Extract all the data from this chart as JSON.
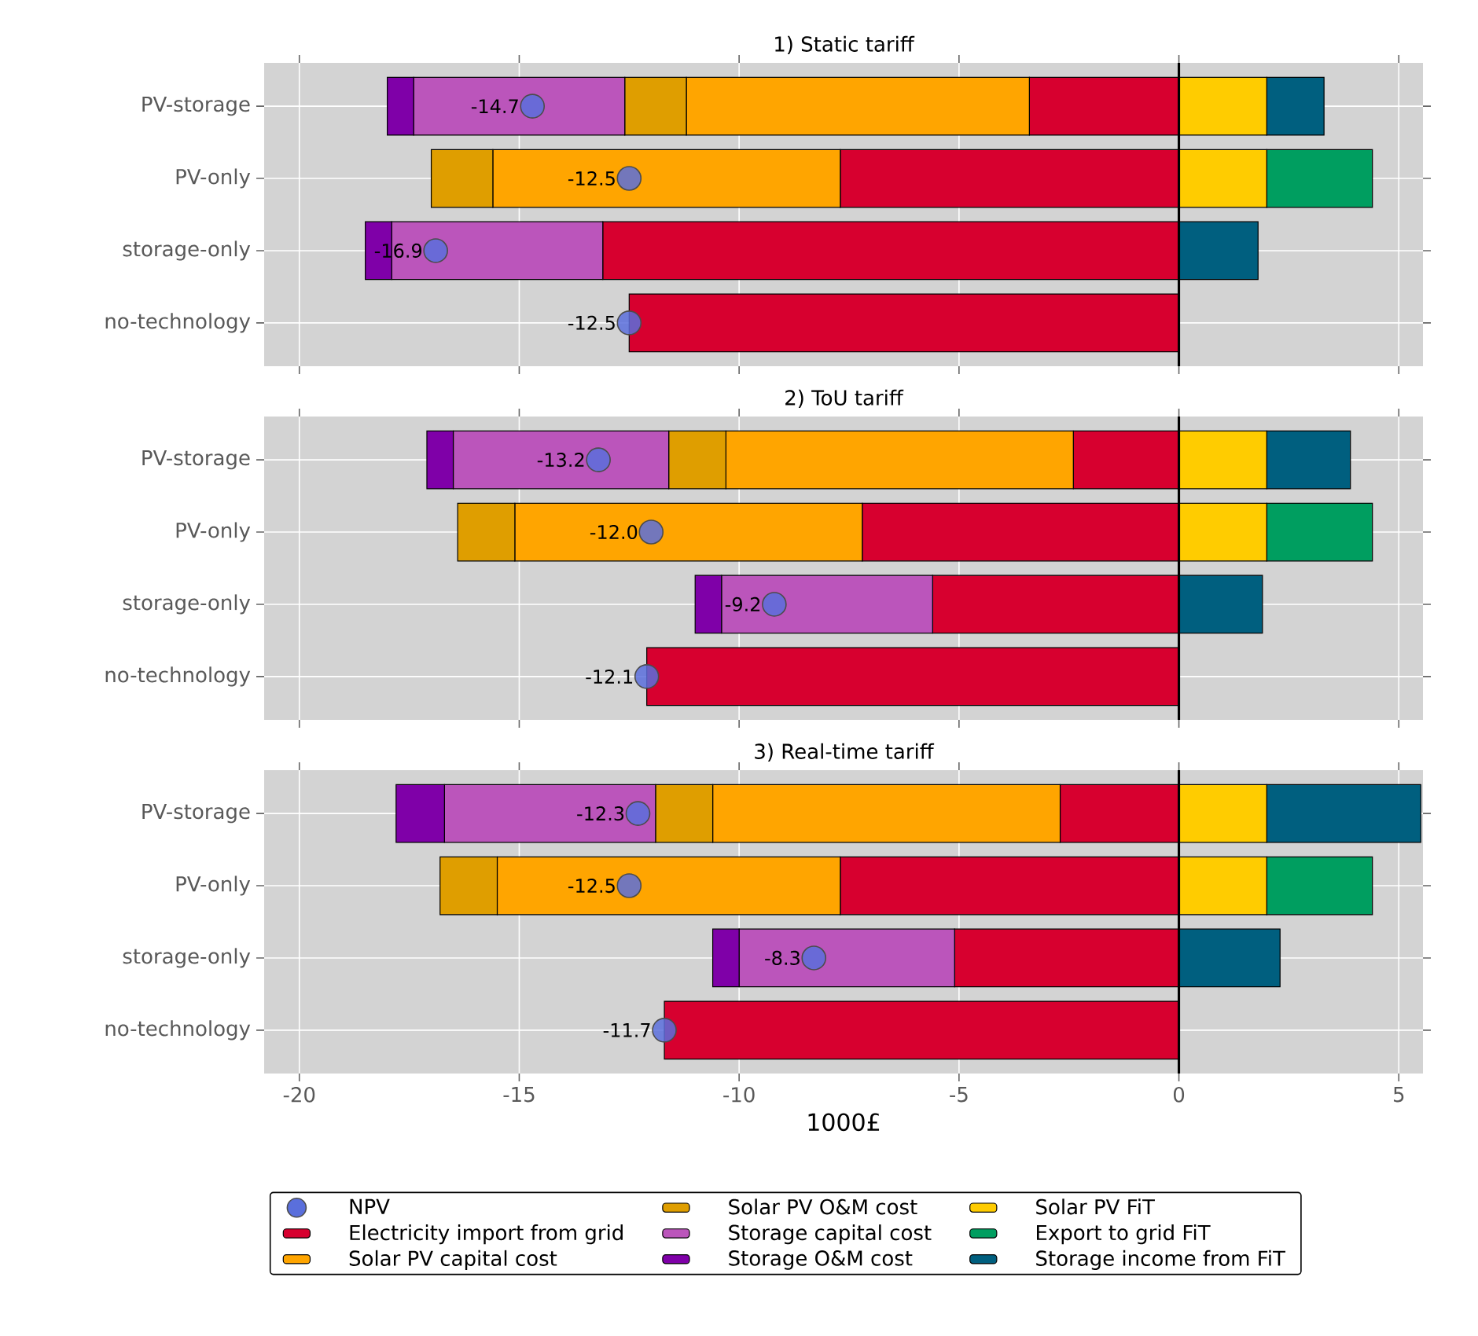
{
  "chart_data": [
    {
      "type": "bar",
      "orientation": "horizontal",
      "stacked": true,
      "title": "1) Static tariff",
      "marker": "circle",
      "categories": [
        "PV-storage",
        "PV-only",
        "storage-only",
        "no-technology"
      ],
      "xlim": [
        -20.8,
        5.55
      ],
      "xticks": [
        -20,
        -15,
        -10,
        -5,
        0,
        5
      ],
      "grid": true,
      "tick_labels": "y",
      "ref_lines": [
        {
          "axis": "x",
          "value": 0,
          "color": "#000000"
        }
      ],
      "series": [
        {
          "type": "scatter",
          "color": "#5a6fdc",
          "values": [
            -14.7,
            -12.5,
            -16.9,
            -12.5
          ],
          "value_labels": [
            "-14.7",
            "-12.5",
            "-16.9",
            "-12.5"
          ]
        },
        {
          "color": "#d7002f",
          "values": [
            -3.4,
            -7.7,
            -13.1,
            -12.5
          ]
        },
        {
          "color": "#ffa500",
          "values": [
            -7.8,
            -7.9,
            null,
            null
          ]
        },
        {
          "color": "#df9e00",
          "values": [
            -1.4,
            -1.4,
            null,
            null
          ]
        },
        {
          "color": "#bb55bb",
          "values": [
            -4.8,
            null,
            -4.8,
            null
          ]
        },
        {
          "color": "#7f00a8",
          "values": [
            -0.6,
            null,
            -0.6,
            null
          ]
        },
        {
          "color": "#ffcc00",
          "values": [
            2.0,
            2.0,
            null,
            null
          ]
        },
        {
          "color": "#009e60",
          "values": [
            null,
            2.4,
            null,
            null
          ]
        },
        {
          "color": "#005f7f",
          "values": [
            1.3,
            null,
            1.8,
            null
          ]
        }
      ]
    },
    {
      "type": "bar",
      "orientation": "horizontal",
      "stacked": true,
      "title": "2) ToU tariff",
      "marker": "circle",
      "categories": [
        "PV-storage",
        "PV-only",
        "storage-only",
        "no-technology"
      ],
      "xlim": [
        -20.8,
        5.55
      ],
      "xticks": [
        -20,
        -15,
        -10,
        -5,
        0,
        5
      ],
      "grid": true,
      "tick_labels": "y",
      "ref_lines": [
        {
          "axis": "x",
          "value": 0,
          "color": "#000000"
        }
      ],
      "series": [
        {
          "type": "scatter",
          "color": "#5a6fdc",
          "values": [
            -13.2,
            -12.0,
            -9.2,
            -12.1
          ],
          "value_labels": [
            "-13.2",
            "-12.0",
            "-9.2",
            "-12.1"
          ]
        },
        {
          "color": "#d7002f",
          "values": [
            -2.4,
            -7.2,
            -5.6,
            -12.1
          ]
        },
        {
          "color": "#ffa500",
          "values": [
            -7.9,
            -7.9,
            null,
            null
          ]
        },
        {
          "color": "#df9e00",
          "values": [
            -1.3,
            -1.3,
            null,
            null
          ]
        },
        {
          "color": "#bb55bb",
          "values": [
            -4.9,
            null,
            -4.8,
            null
          ]
        },
        {
          "color": "#7f00a8",
          "values": [
            -0.6,
            null,
            -0.6,
            null
          ]
        },
        {
          "color": "#ffcc00",
          "values": [
            2.0,
            2.0,
            null,
            null
          ]
        },
        {
          "color": "#009e60",
          "values": [
            null,
            2.4,
            null,
            null
          ]
        },
        {
          "color": "#005f7f",
          "values": [
            1.9,
            null,
            1.9,
            null
          ]
        }
      ]
    },
    {
      "type": "bar",
      "orientation": "horizontal",
      "stacked": true,
      "title": "3) Real-time tariff",
      "marker": "circle",
      "xlabel": "1000£",
      "categories": [
        "PV-storage",
        "PV-only",
        "storage-only",
        "no-technology"
      ],
      "xlim": [
        -20.8,
        5.55
      ],
      "xticks": [
        -20,
        -15,
        -10,
        -5,
        0,
        5
      ],
      "grid": true,
      "legend": "bottom",
      "ref_lines": [
        {
          "axis": "x",
          "value": 0,
          "color": "#000000"
        }
      ],
      "series": [
        {
          "name": "NPV",
          "type": "scatter",
          "color": "#5a6fdc",
          "values": [
            -12.3,
            -12.5,
            -8.3,
            -11.7
          ],
          "value_labels": [
            "-12.3",
            "-12.5",
            "-8.3",
            "-11.7"
          ]
        },
        {
          "name": "Electricity import from grid",
          "color": "#d7002f",
          "values": [
            -2.7,
            -7.7,
            -5.1,
            -11.7
          ]
        },
        {
          "name": "Solar PV capital cost",
          "color": "#ffa500",
          "values": [
            -7.9,
            -7.8,
            null,
            null
          ]
        },
        {
          "name": "Solar PV O&M cost",
          "color": "#df9e00",
          "values": [
            -1.3,
            -1.3,
            null,
            null
          ]
        },
        {
          "name": "Storage capital cost",
          "color": "#bb55bb",
          "values": [
            -4.8,
            null,
            -4.9,
            null
          ]
        },
        {
          "name": "Storage O&M cost",
          "color": "#7f00a8",
          "values": [
            -1.1,
            null,
            -0.6,
            null
          ]
        },
        {
          "name": "Solar PV FiT",
          "color": "#ffcc00",
          "values": [
            2.0,
            2.0,
            null,
            null
          ]
        },
        {
          "name": "Export to grid FiT",
          "color": "#009e60",
          "values": [
            null,
            2.4,
            null,
            null
          ]
        },
        {
          "name": "Storage income from FiT",
          "color": "#005f7f",
          "values": [
            3.5,
            null,
            2.3,
            null
          ]
        }
      ]
    }
  ]
}
